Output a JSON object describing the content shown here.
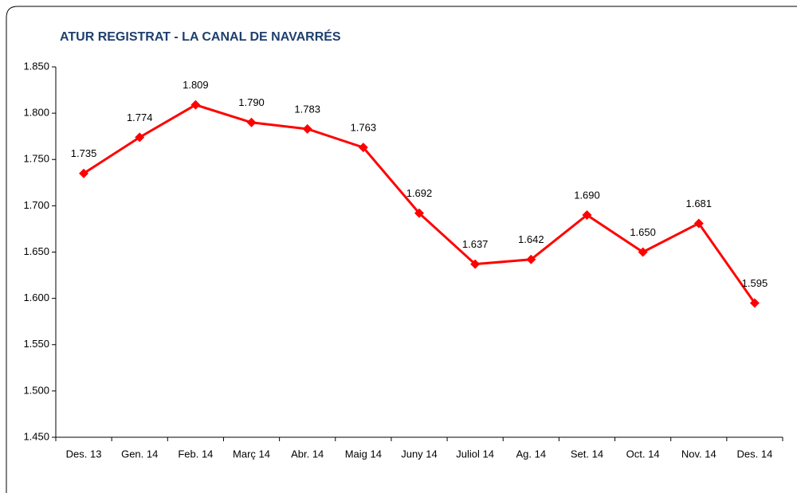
{
  "chart_data": {
    "type": "line",
    "title": "ATUR REGISTRAT - LA CANAL DE NAVARRÉS",
    "categories": [
      "Des. 13",
      "Gen. 14",
      "Feb. 14",
      "Març 14",
      "Abr. 14",
      "Maig 14",
      "Juny 14",
      "Juliol 14",
      "Ag. 14",
      "Set. 14",
      "Oct. 14",
      "Nov. 14",
      "Des. 14"
    ],
    "series": [
      {
        "name": "Atur registrat",
        "color": "#ff0000",
        "values": [
          1735,
          1774,
          1809,
          1790,
          1783,
          1763,
          1692,
          1637,
          1642,
          1690,
          1650,
          1681,
          1595
        ],
        "value_labels": [
          "1.735",
          "1.774",
          "1.809",
          "1.790",
          "1.783",
          "1.763",
          "1.692",
          "1.637",
          "1.642",
          "1.690",
          "1.650",
          "1.681",
          "1.595"
        ]
      }
    ],
    "ylim": [
      1450,
      1850
    ],
    "yticks": [
      {
        "value": 1450,
        "label": "1.450"
      },
      {
        "value": 1500,
        "label": "1.500"
      },
      {
        "value": 1550,
        "label": "1.550"
      },
      {
        "value": 1600,
        "label": "1.600"
      },
      {
        "value": 1650,
        "label": "1.650"
      },
      {
        "value": 1700,
        "label": "1.700"
      },
      {
        "value": 1750,
        "label": "1.750"
      },
      {
        "value": 1800,
        "label": "1.800"
      },
      {
        "value": 1850,
        "label": "1.850"
      }
    ],
    "grid": false
  }
}
